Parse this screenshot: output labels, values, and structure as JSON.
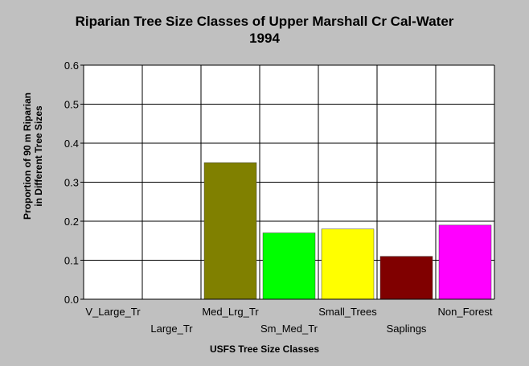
{
  "chart_data": {
    "type": "bar",
    "title": "Riparian Tree Size Classes of Upper Marshall Cr Cal-Water",
    "subtitle": "1994",
    "xlabel": "USFS Tree Size Classes",
    "ylabel_line1": "Proportion of 90 m Riparian",
    "ylabel_line2": "in Different Tree Sizes",
    "categories": [
      "V_Large_Tr",
      "Large_Tr",
      "Med_Lrg_Tr",
      "Sm_Med_Tr",
      "Small_Trees",
      "Saplings",
      "Non_Forest"
    ],
    "values": [
      0,
      0,
      0.35,
      0.17,
      0.18,
      0.11,
      0.19
    ],
    "colors": [
      "#808000",
      "#808000",
      "#808000",
      "#00ff00",
      "#ffff00",
      "#800000",
      "#ff00ff"
    ],
    "ylim": [
      0,
      0.6
    ],
    "yticks": [
      "0.0",
      "0.1",
      "0.2",
      "0.3",
      "0.4",
      "0.5",
      "0.6"
    ],
    "grid": true,
    "legend": "none"
  }
}
